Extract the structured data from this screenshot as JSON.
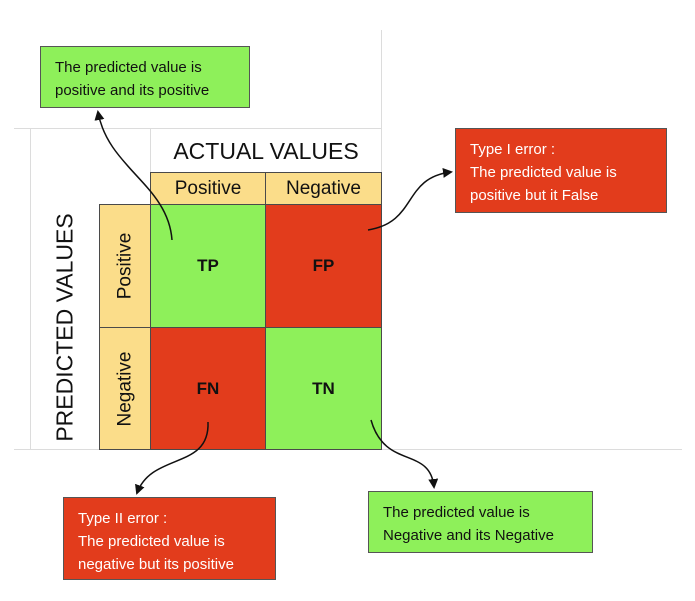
{
  "actual_values_title": "ACTUAL VALUES",
  "predicted_values_title": "PREDICTED VALUES",
  "columns": [
    "Positive",
    "Negative"
  ],
  "rows": [
    "Positive",
    "Negative"
  ],
  "cells": {
    "tp": "TP",
    "fp": "FP",
    "fn": "FN",
    "tn": "TN"
  },
  "callouts": {
    "tp": [
      "The predicted value is",
      "positive and its positive"
    ],
    "fp": [
      "Type I error :",
      "The predicted value is",
      "positive but it False"
    ],
    "fn": [
      "Type II error :",
      "The predicted value is",
      "negative but its positive"
    ],
    "tn": [
      "The predicted value is",
      "Negative and its Negative"
    ]
  },
  "colors": {
    "correct": "#8ef05a",
    "error": "#e23c1c",
    "header": "#fbdd8a"
  }
}
